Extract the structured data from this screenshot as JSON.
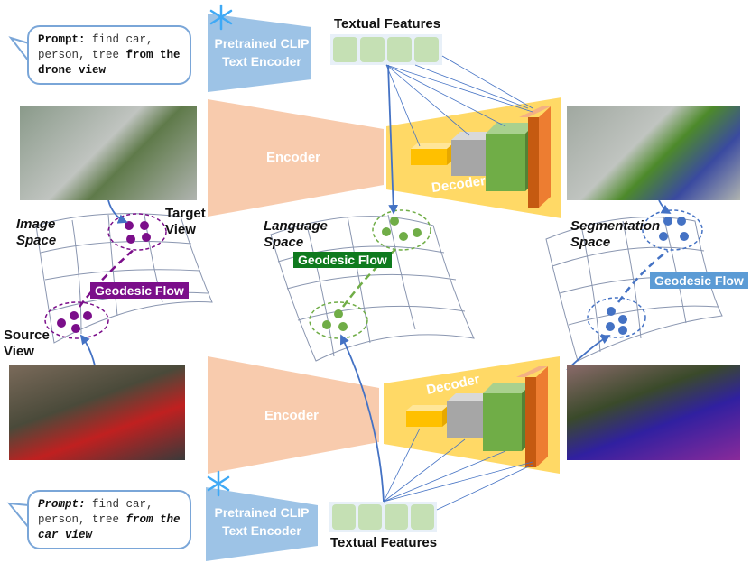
{
  "top_prompt": {
    "label": "Prompt:",
    "text": " find car, person, tree ",
    "emphasis": "from the drone view"
  },
  "bottom_prompt": {
    "label": "Prompt:",
    "text": " find car, person, tree ",
    "emphasis": "from the car view"
  },
  "clip_encoder_label": "Pretrained CLIP Text Encoder",
  "textual_features_label": "Textual Features",
  "encoder_label": "Encoder",
  "decoder_label": "Decoder",
  "image_space": {
    "title": "Image Space",
    "target": "Target View",
    "source": "Source View",
    "flow": "Geodesic Flow"
  },
  "language_space": {
    "title": "Language Space",
    "flow": "Geodesic Flow"
  },
  "segmentation_space": {
    "title": "Segmentation Space",
    "flow": "Geodesic Flow"
  },
  "colors": {
    "clip": "#9dc3e6",
    "encoder": "#f8cbad",
    "decoder": "#ffd966",
    "feature_box": "#c5e0b4",
    "purple": "#7b0e8a",
    "green": "#0e7a1e",
    "blue": "#5b9bd5",
    "arrow": "#4472c4"
  },
  "icons": [
    "snowflake-icon"
  ]
}
